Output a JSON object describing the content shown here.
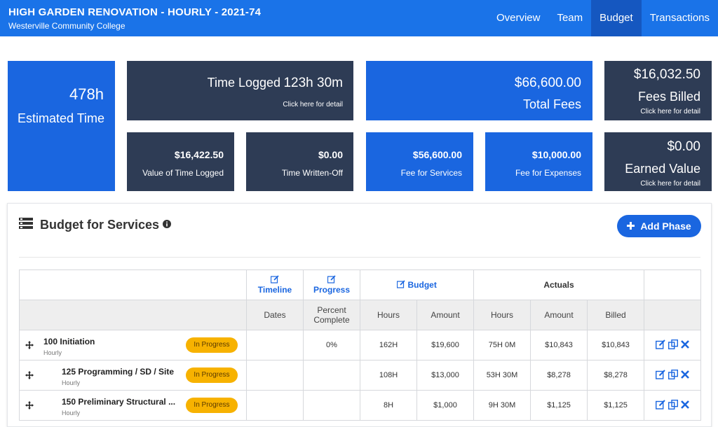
{
  "header": {
    "title": "HIGH GARDEN RENOVATION - HOURLY - 2021-74",
    "subtitle": "Westerville Community College",
    "tabs": [
      {
        "label": "Overview",
        "active": false
      },
      {
        "label": "Team",
        "active": false
      },
      {
        "label": "Budget",
        "active": true
      },
      {
        "label": "Transactions",
        "active": false
      }
    ]
  },
  "stats": {
    "estimated_time": {
      "value": "478h",
      "label": "Estimated Time"
    },
    "time_logged": {
      "label": "Time Logged",
      "value": "123h 30m",
      "link": "Click here for detail"
    },
    "total_fees": {
      "value": "$66,600.00",
      "label": "Total Fees"
    },
    "fees_billed": {
      "value": "$16,032.50",
      "label": "Fees Billed",
      "link": "Click here for detail"
    },
    "value_time_logged": {
      "value": "$16,422.50",
      "label": "Value of Time Logged"
    },
    "time_written_off": {
      "value": "$0.00",
      "label": "Time Written-Off"
    },
    "fee_services": {
      "value": "$56,600.00",
      "label": "Fee for Services"
    },
    "fee_expenses": {
      "value": "$10,000.00",
      "label": "Fee for Expenses"
    },
    "earned_value": {
      "value": "$0.00",
      "label": "Earned Value",
      "link": "Click here for detail"
    }
  },
  "panel": {
    "title": "Budget for Services",
    "add_button": "Add Phase"
  },
  "table": {
    "group_headers": {
      "timeline": "Timeline",
      "progress": "Progress",
      "budget": "Budget",
      "actuals": "Actuals"
    },
    "columns": {
      "dates": "Dates",
      "percent_1": "Percent",
      "percent_2": "Complete",
      "hours": "Hours",
      "amount": "Amount",
      "act_hours": "Hours",
      "act_amount": "Amount",
      "billed": "Billed"
    },
    "rows": [
      {
        "name": "100 Initiation",
        "type": "Hourly",
        "status": "In Progress",
        "dates": "",
        "percent": "0%",
        "hours": "162H",
        "amount": "$19,600",
        "act_hours": "75H 0M",
        "act_amount": "$10,843",
        "billed": "$10,843"
      },
      {
        "name": "125 Programming / SD / Site",
        "type": "Hourly",
        "status": "In Progress",
        "dates": "",
        "percent": "",
        "hours": "108H",
        "amount": "$13,000",
        "act_hours": "53H 30M",
        "act_amount": "$8,278",
        "billed": "$8,278"
      },
      {
        "name": "150 Preliminary Structural ...",
        "type": "Hourly",
        "status": "In Progress",
        "dates": "",
        "percent": "",
        "hours": "8H",
        "amount": "$1,000",
        "act_hours": "9H 30M",
        "act_amount": "$1,125",
        "billed": "$1,125"
      }
    ]
  },
  "colors": {
    "primary": "#1a73e8",
    "card_dark": "#2e3c55",
    "card_blue": "#1a66e0",
    "badge": "#f7b200"
  }
}
